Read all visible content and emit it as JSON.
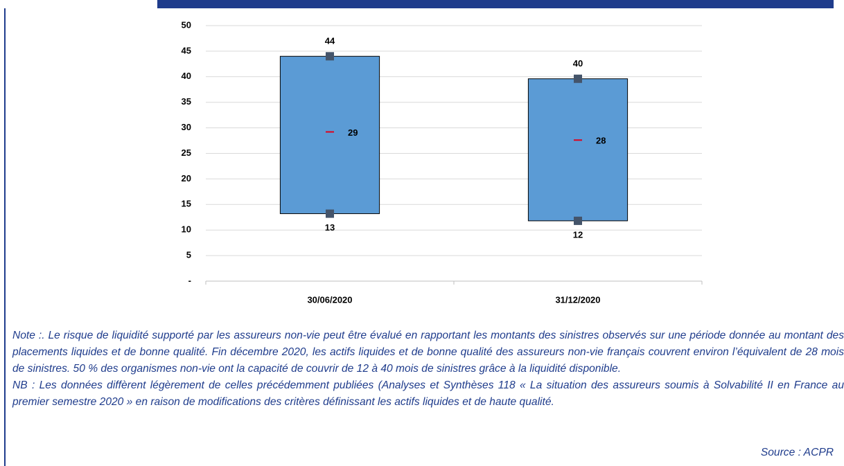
{
  "chart_data": {
    "type": "range",
    "categories": [
      "30/06/2020",
      "31/12/2020"
    ],
    "high": {
      "values": [
        44,
        39.6
      ],
      "value_labels": [
        "44",
        "40"
      ]
    },
    "low": {
      "values": [
        13.2,
        11.8
      ],
      "value_labels": [
        "13",
        "12"
      ]
    },
    "median": {
      "values": [
        29.2,
        27.6
      ],
      "value_labels": [
        "29",
        "28"
      ]
    },
    "color": "#5b9bd5",
    "marker_color": "#44546a",
    "median_color": "#e0001b",
    "ylim": [
      0,
      50
    ],
    "yticks": [
      {
        "value": 0,
        "label": "-"
      },
      5,
      10,
      15,
      20,
      25,
      30,
      35,
      40,
      45,
      50
    ],
    "grid": true
  },
  "notes": {
    "note": "Note :. Le risque de liquidité supporté par les assureurs non-vie peut être évalué en rapportant les montants des sinistres observés sur une période donnée au montant des placements liquides et de bonne qualité. Fin décembre 2020, les actifs liquides et de bonne qualité des assureurs non-vie français couvrent environ l’équivalent de 28 mois de sinistres. 50 % des organismes non-vie ont la capacité de couvrir de 12 à 40 mois de sinistres grâce à la liquidité disponible.",
    "nb": "NB : Les données diffèrent légèrement de celles précédemment publiées (Analyses et Synthèses 118 « La situation des assureurs soumis à Solvabilité II en France au premier semestre 2020 » en raison de modifications des critères définissant les actifs liquides et de haute qualité.",
    "source": "Source : ACPR"
  }
}
